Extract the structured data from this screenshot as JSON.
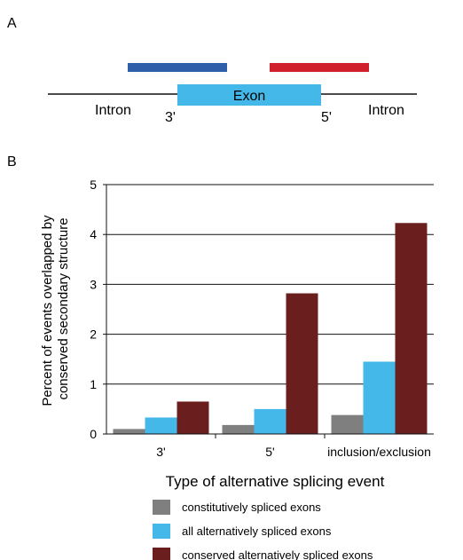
{
  "panel_a": {
    "label": "A",
    "exon_label": "Exon",
    "left_intron": "Intron",
    "right_intron": "Intron",
    "left_site": "3'",
    "right_site": "5'",
    "colors": {
      "left_bar": "#2e5fa8",
      "right_bar": "#d0202a",
      "exon": "#45b8ea",
      "line": "#111111"
    }
  },
  "panel_b": {
    "label": "B"
  },
  "chart_data": {
    "type": "bar",
    "title": "",
    "xlabel": "Type of alternative splicing event",
    "ylabel": "Percent of events overlapped by conserved secondary  structure",
    "ylabel_lines": [
      "Percent of events overlapped by",
      "conserved secondary  structure"
    ],
    "ylim": [
      0,
      5
    ],
    "yticks": [
      0,
      1,
      2,
      3,
      4,
      5
    ],
    "grid": true,
    "legend_position": "bottom",
    "categories": [
      "3'",
      "5'",
      "inclusion/exclusion"
    ],
    "series": [
      {
        "name": "constitutively spliced exons",
        "color": "#7f7f7f",
        "values": [
          0.1,
          0.18,
          0.38
        ]
      },
      {
        "name": "all alternatively spliced exons",
        "color": "#45b8ea",
        "values": [
          0.33,
          0.5,
          1.45
        ]
      },
      {
        "name": "conserved alternatively spliced exons",
        "color": "#6b1e1e",
        "values": [
          0.65,
          2.82,
          4.23
        ]
      }
    ]
  }
}
